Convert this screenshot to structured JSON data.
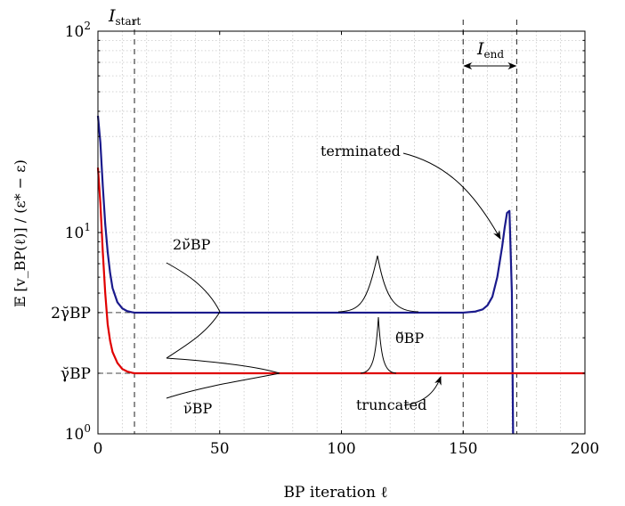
{
  "chart_data": {
    "type": "line",
    "title": "",
    "xlabel": "BP iteration ℓ",
    "ylabel": "𝔼 [v_BP(ℓ)] / (ε* − ε)",
    "xlim": [
      0,
      200
    ],
    "ylim": [
      1,
      100
    ],
    "yscale": "log",
    "grid": true,
    "x_ticks": [
      "0",
      "50",
      "100",
      "150",
      "200"
    ],
    "y_ticks": [
      {
        "base": "10",
        "exp": "0",
        "value": 1
      },
      {
        "base": "10",
        "exp": "1",
        "value": 10
      },
      {
        "base": "10",
        "exp": "2",
        "value": 100
      }
    ],
    "y_special_ticks": [
      {
        "label": "γ̆BP",
        "value": 2.0
      },
      {
        "label": "2γ̆BP",
        "value": 4.0
      }
    ],
    "series": [
      {
        "name": "terminated",
        "color": "#1a1a8c",
        "x": [
          0,
          1,
          2,
          3,
          4,
          5,
          6,
          8,
          10,
          12,
          14,
          15,
          20,
          40,
          80,
          120,
          140,
          150,
          155,
          158,
          160,
          162,
          164,
          166,
          167,
          168,
          169,
          170,
          170.5
        ],
        "y": [
          38,
          28,
          17,
          11,
          8,
          6.3,
          5.3,
          4.5,
          4.2,
          4.07,
          4.02,
          4.0,
          4.0,
          4.0,
          4.0,
          4.0,
          4.0,
          4.0,
          4.05,
          4.15,
          4.35,
          4.8,
          6.0,
          8.5,
          10.5,
          12.5,
          12.8,
          5.0,
          1.0
        ]
      },
      {
        "name": "truncated",
        "color": "#e00000",
        "x": [
          0,
          1,
          2,
          3,
          4,
          5,
          6,
          8,
          10,
          12,
          14,
          15,
          50,
          100,
          150,
          200
        ],
        "y": [
          21,
          14,
          8,
          5,
          3.5,
          2.9,
          2.55,
          2.25,
          2.1,
          2.04,
          2.01,
          2.0,
          2.0,
          2.0,
          2.0,
          2.0
        ]
      }
    ],
    "vlines": [
      15,
      150,
      172
    ],
    "annotations": {
      "i_start": {
        "base": "I",
        "sub": "start"
      },
      "i_end": {
        "base": "I",
        "sub": "end"
      },
      "terminated": "terminated",
      "truncated": "truncated",
      "two_nu": "2ν̆BP",
      "nu": "ν̆BP",
      "theta": "θ̆BP"
    }
  }
}
